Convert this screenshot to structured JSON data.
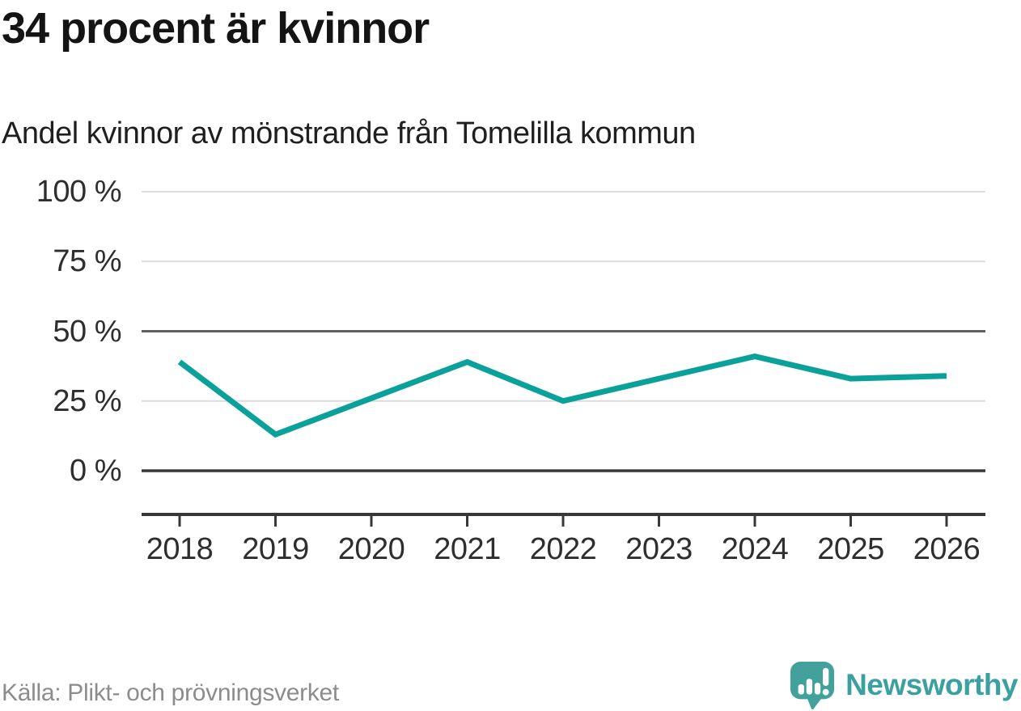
{
  "header": {
    "title": "34 procent är kvinnor",
    "subtitle": "Andel kvinnor av mönstrande från Tomelilla kommun"
  },
  "chart_data": {
    "type": "line",
    "title": "34 procent är kvinnor",
    "subtitle": "Andel kvinnor av mönstrande från Tomelilla kommun",
    "categories": [
      "2018",
      "2019",
      "2020",
      "2021",
      "2022",
      "2023",
      "2024",
      "2025",
      "2026"
    ],
    "series": [
      {
        "name": "Andel kvinnor av mönstrande",
        "values": [
          39,
          13,
          26,
          39,
          25,
          33,
          41,
          33,
          34
        ]
      }
    ],
    "unit": "%",
    "xlabel": "",
    "ylabel": "",
    "ylim": [
      0,
      100
    ],
    "yticks": [
      {
        "value": 0,
        "label": "0 %"
      },
      {
        "value": 25,
        "label": "25 %"
      },
      {
        "value": 50,
        "label": "50 %"
      },
      {
        "value": 75,
        "label": "75 %"
      },
      {
        "value": 100,
        "label": "100 %"
      }
    ],
    "grid": "horizontal",
    "legend": "none",
    "line_color": "#0aa19a"
  },
  "footer": {
    "source": "Källa: Plikt- och prövningsverket",
    "brand": "Newsworthy"
  },
  "colors": {
    "accent_teal": "#0aa19a",
    "brand_teal": "#3ba0a0",
    "logo_bubble_teal": "#42a29b",
    "grid_light": "#dcdcdc",
    "grid_mid": "#5f5f5f",
    "axis_dark": "#383838",
    "title_text": "#141414",
    "axis_text": "#2e2e2e",
    "muted_text": "#8c8c8c"
  },
  "icons": {
    "logo": "newsworthy-speech-bubble-bar-chart-icon"
  }
}
